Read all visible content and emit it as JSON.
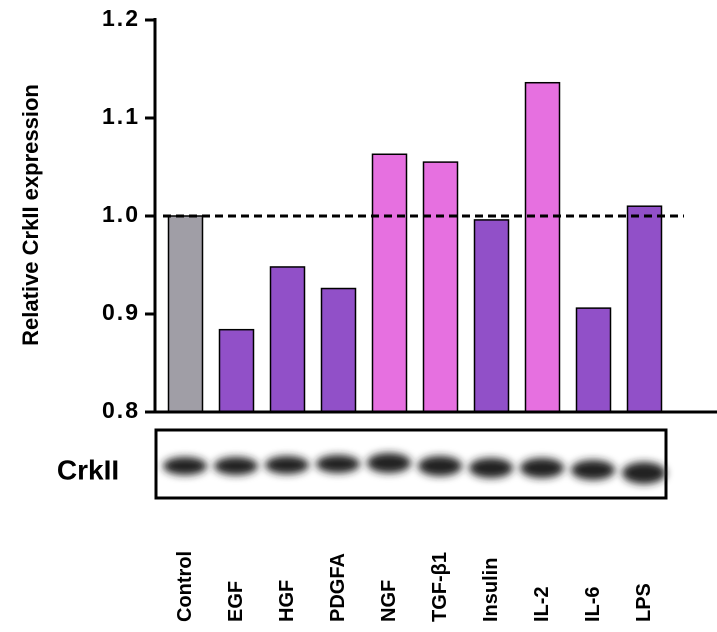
{
  "chart_data": {
    "type": "bar",
    "y_label": "Relative CrkII expression",
    "categories": [
      "Control",
      "EGF",
      "HGF",
      "PDGFA",
      "NGF",
      "TGF-β1",
      "Insulin",
      "IL-2",
      "IL-6",
      "LPS"
    ],
    "values": [
      1.0,
      0.884,
      0.948,
      0.926,
      1.063,
      1.055,
      0.996,
      1.136,
      0.906,
      1.01
    ],
    "colors": [
      "#a09ea6",
      "#9150c8",
      "#9150c8",
      "#9150c8",
      "#e670e0",
      "#e670e0",
      "#9150c8",
      "#e670e0",
      "#9150c8",
      "#9150c8"
    ],
    "ylim": [
      0.8,
      1.2
    ],
    "yticks": [
      0.8,
      0.9,
      {
        "value": 1.0,
        "label": "1.0"
      },
      1.1,
      1.2
    ],
    "reference_line": 1.0,
    "blot_label": "CrkII"
  }
}
